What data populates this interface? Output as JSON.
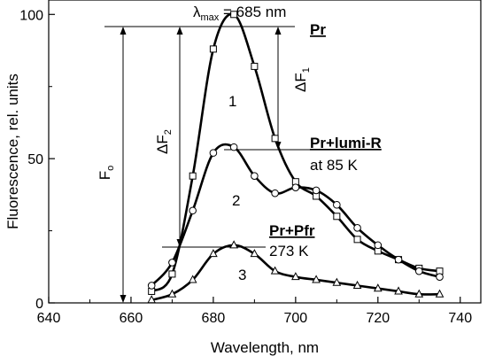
{
  "chart_data": {
    "type": "line",
    "xlabel": "Wavelength, nm",
    "ylabel": "Fluorescence, rel. units",
    "xlim": [
      640,
      745
    ],
    "ylim": [
      0,
      105
    ],
    "xticks": [
      640,
      660,
      680,
      700,
      720,
      740
    ],
    "yticks": [
      0,
      50,
      100
    ],
    "grid": false,
    "series": [
      {
        "name": "1",
        "marker": "square",
        "x": [
          665,
          670,
          675,
          680,
          685,
          690,
          695,
          700,
          705,
          710,
          715,
          720,
          725,
          730,
          735
        ],
        "y": [
          4,
          10,
          44,
          88,
          100,
          82,
          57,
          42,
          37,
          30,
          22,
          18,
          15,
          12,
          11
        ]
      },
      {
        "name": "2",
        "marker": "circle",
        "x": [
          665,
          670,
          675,
          680,
          685,
          690,
          695,
          700,
          705,
          710,
          715,
          720,
          725,
          730,
          735
        ],
        "y": [
          6,
          14,
          32,
          52,
          54,
          44,
          38,
          40,
          39,
          34,
          26,
          20,
          15,
          11,
          9
        ]
      },
      {
        "name": "3",
        "marker": "triangle",
        "x": [
          665,
          670,
          675,
          680,
          685,
          690,
          695,
          700,
          705,
          710,
          715,
          720,
          725,
          730,
          735
        ],
        "y": [
          1,
          3,
          8,
          17,
          20,
          17,
          11,
          9,
          8,
          7,
          6,
          5,
          4,
          3,
          3
        ]
      }
    ],
    "annotations": {
      "lambda_symbol": "λ",
      "lambda_sub": "max",
      "lambda_value": " = 685 nm",
      "label_pr": "Pr",
      "label_pr_lumi": "Pr+lumi-R",
      "label_85k": "at 85 K",
      "label_pr_pfr": "Pr+Pfr",
      "label_273k": "273 K",
      "f0_main": "F",
      "f0_sub": "o",
      "df1_main": "ΔF",
      "df1_sub": "1",
      "df2_main": "ΔF",
      "df2_sub": "2",
      "curve_label_1": "1",
      "curve_label_2": "2",
      "curve_label_3": "3"
    }
  }
}
